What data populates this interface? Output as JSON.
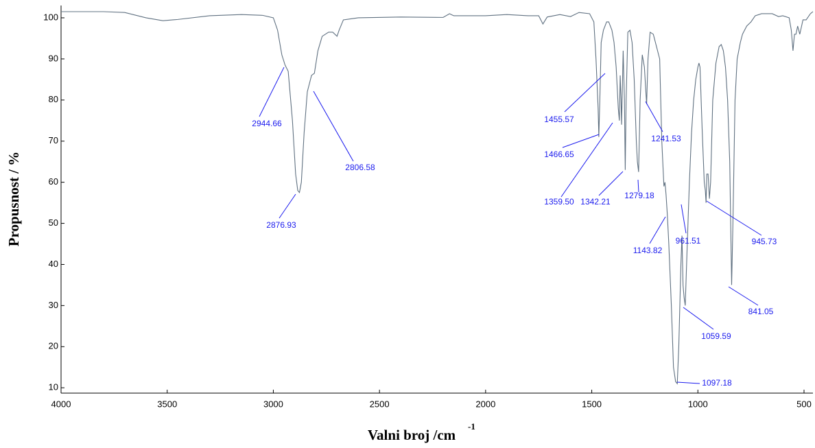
{
  "chart_data": {
    "type": "line",
    "x_label": "Valni broj /cm",
    "x_label_sup": "-1",
    "y_label": "Propusnost / %",
    "xlim": [
      4000,
      458
    ],
    "xticks": [
      4000,
      3500,
      3000,
      2500,
      2000,
      1500,
      1000,
      500
    ],
    "ylim": [
      8.7,
      103
    ],
    "yticks": [
      10,
      20,
      30,
      40,
      50,
      60,
      70,
      80,
      90,
      100
    ],
    "series": [
      {
        "color": "#5f7080",
        "x": [
          4000,
          3800,
          3700,
          3600,
          3520,
          3450,
          3300,
          3150,
          3050,
          3000,
          2980,
          2960,
          2944.66,
          2930,
          2910,
          2895,
          2885,
          2876.93,
          2868,
          2855,
          2840,
          2820,
          2806.58,
          2790,
          2770,
          2740,
          2720,
          2700,
          2690,
          2670,
          2600,
          2400,
          2200,
          2170,
          2150,
          2000,
          1900,
          1800,
          1750,
          1730,
          1710,
          1650,
          1600,
          1560,
          1510,
          1490,
          1480,
          1470,
          1466.65,
          1462,
          1455.57,
          1445,
          1430,
          1420,
          1405,
          1395,
          1385,
          1375,
          1370,
          1366,
          1362,
          1359.5,
          1352,
          1346,
          1342.21,
          1338,
          1330,
          1320,
          1310,
          1300,
          1290,
          1285,
          1279.18,
          1272,
          1262,
          1252,
          1241.53,
          1235,
          1225,
          1210,
          1195,
          1180,
          1170,
          1160,
          1155,
          1150,
          1143.82,
          1137,
          1125,
          1115,
          1105,
          1097.18,
          1090,
          1080,
          1075,
          1070,
          1065,
          1059.59,
          1050,
          1040,
          1030,
          1020,
          1010,
          1000,
          995,
          990,
          980,
          970,
          965,
          961.51,
          958,
          952,
          945.73,
          940,
          930,
          915,
          900,
          890,
          880,
          870,
          860,
          850,
          841.05,
          835,
          825,
          815,
          800,
          790,
          770,
          750,
          730,
          700,
          650,
          620,
          600,
          570,
          560,
          552,
          545,
          538,
          530,
          520,
          505,
          490,
          470,
          458
        ],
        "values": [
          101.5,
          101.5,
          101.3,
          100,
          99.3,
          99.6,
          100.5,
          100.8,
          100.6,
          100,
          97,
          91,
          88.5,
          87,
          75,
          62,
          58,
          57.5,
          60,
          72,
          82,
          86,
          86.5,
          92,
          95.5,
          96.5,
          96.5,
          95.5,
          97,
          99.5,
          100,
          100.2,
          100.1,
          101,
          100.5,
          100.5,
          100.8,
          100.5,
          100.5,
          98.5,
          100.2,
          100.8,
          100.3,
          101.3,
          101,
          99,
          90,
          78,
          71,
          80,
          94,
          97,
          99,
          99,
          97,
          94,
          88,
          78,
          75,
          86,
          80,
          74,
          92,
          80,
          63,
          80,
          96.5,
          97,
          94,
          85,
          70,
          65,
          62.5,
          80,
          91,
          88,
          79,
          90,
          96.5,
          96,
          93,
          90,
          70,
          59,
          60,
          57,
          52,
          45,
          30,
          15,
          11.5,
          11,
          20,
          40,
          47,
          35,
          32,
          30,
          45,
          60,
          72,
          80,
          85,
          88,
          89,
          88,
          73,
          60,
          58,
          55,
          62,
          62,
          56,
          60,
          80,
          89,
          93,
          93.5,
          92,
          88,
          80,
          65,
          35,
          50,
          80,
          90,
          94,
          96,
          98,
          99,
          100.5,
          101,
          101,
          100.3,
          100.5,
          100,
          97,
          92,
          96,
          96,
          98,
          96,
          99.5,
          99.5,
          101,
          101.5
        ]
      }
    ],
    "annotations": [
      {
        "text": "2944.66"
      },
      {
        "text": "2806.58"
      },
      {
        "text": "2876.93"
      },
      {
        "text": "1455.57"
      },
      {
        "text": "1466.65"
      },
      {
        "text": "1359.50"
      },
      {
        "text": "1342.21"
      },
      {
        "text": "1279.18"
      },
      {
        "text": "1241.53"
      },
      {
        "text": "1143.82"
      },
      {
        "text": "961.51"
      },
      {
        "text": "945.73"
      },
      {
        "text": "841.05"
      },
      {
        "text": "1059.59"
      },
      {
        "text": "1097.18"
      }
    ]
  }
}
